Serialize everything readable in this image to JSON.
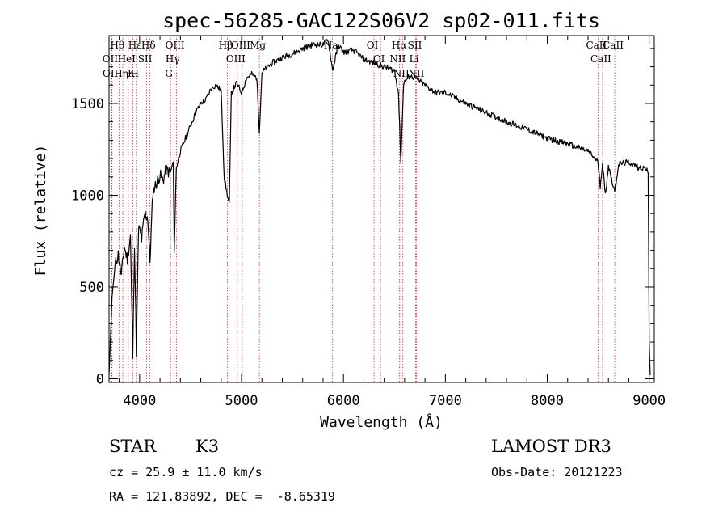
{
  "chart_data": {
    "type": "line",
    "title": "spec-56285-GAC122S06V2_sp02-011.fits",
    "xlabel": "Wavelength (Å)",
    "ylabel": "Flux (relative)",
    "xlim": [
      3700,
      9050
    ],
    "ylim": [
      -20,
      1870
    ],
    "x_ticks": [
      4000,
      5000,
      6000,
      7000,
      8000,
      9000
    ],
    "x_tick_labels": [
      "4000",
      "5000",
      "6000",
      "7000",
      "8000",
      "9000"
    ],
    "y_ticks": [
      0,
      500,
      1000,
      1500
    ],
    "y_tick_labels": [
      "0",
      "500",
      "1000",
      "1500"
    ],
    "series": [
      {
        "name": "spectrum",
        "color": "#000000",
        "x": [
          3700,
          3730,
          3760,
          3790,
          3820,
          3850,
          3880,
          3910,
          3933,
          3950,
          3968,
          3990,
          4020,
          4050,
          4080,
          4102,
          4130,
          4160,
          4200,
          4230,
          4260,
          4300,
          4330,
          4340,
          4360,
          4400,
          4450,
          4500,
          4550,
          4600,
          4650,
          4700,
          4750,
          4800,
          4830,
          4861,
          4880,
          4900,
          4950,
          5000,
          5050,
          5100,
          5150,
          5175,
          5200,
          5300,
          5400,
          5500,
          5600,
          5700,
          5800,
          5850,
          5893,
          5950,
          6000,
          6100,
          6200,
          6300,
          6400,
          6500,
          6540,
          6563,
          6590,
          6650,
          6700,
          6800,
          6900,
          7000,
          7200,
          7400,
          7600,
          7800,
          8000,
          8200,
          8400,
          8498,
          8520,
          8542,
          8570,
          8600,
          8662,
          8700,
          8800,
          8900,
          8960,
          8990,
          9000,
          9010
        ],
        "y": [
          20,
          450,
          620,
          680,
          560,
          720,
          650,
          780,
          120,
          740,
          150,
          830,
          760,
          900,
          880,
          640,
          1020,
          1060,
          1110,
          1080,
          1140,
          1120,
          1180,
          700,
          1150,
          1240,
          1310,
          1380,
          1450,
          1500,
          1520,
          1580,
          1600,
          1570,
          1100,
          1000,
          950,
          1560,
          1610,
          1560,
          1640,
          1660,
          1640,
          1350,
          1670,
          1720,
          1750,
          1770,
          1800,
          1820,
          1820,
          1850,
          1680,
          1820,
          1780,
          1790,
          1740,
          1720,
          1700,
          1680,
          1560,
          1180,
          1610,
          1650,
          1640,
          1600,
          1560,
          1560,
          1500,
          1450,
          1400,
          1360,
          1310,
          1280,
          1240,
          1180,
          1050,
          1180,
          1000,
          1160,
          1020,
          1170,
          1180,
          1150,
          1150,
          1120,
          200,
          20
        ]
      }
    ],
    "lines": {
      "labels": [
        "Hθ",
        "OII",
        "OII",
        "Hε",
        "HeI",
        "Hη",
        "K",
        "SII",
        "H",
        "Hδ",
        "OIII",
        "Hγ",
        "G",
        "Hβ",
        "OIII",
        "OIII",
        "Mg",
        "Na",
        "OI",
        "OI",
        "Hα",
        "NII",
        "NII",
        "SII",
        "Li",
        "NII",
        "CaII",
        "CaII",
        "CaII"
      ],
      "wavelengths": [
        3798,
        3727,
        3729,
        3970,
        3889,
        3835,
        3934,
        4069,
        3968,
        4102,
        4363,
        4340,
        4304,
        4861,
        4959,
        5007,
        5175,
        5893,
        6300,
        6364,
        6563,
        6548,
        6583,
        6716,
        6708,
        6731,
        8498,
        8542,
        8662
      ]
    }
  },
  "info": {
    "object_class": "STAR",
    "subclass": "K3",
    "survey": "LAMOST DR3",
    "cz_text": "cz = 25.9 ± 11.0 km/s",
    "obs_date_text": "Obs-Date: 20121223",
    "coords_text": "RA = 121.83892, DEC =  -8.65319"
  }
}
